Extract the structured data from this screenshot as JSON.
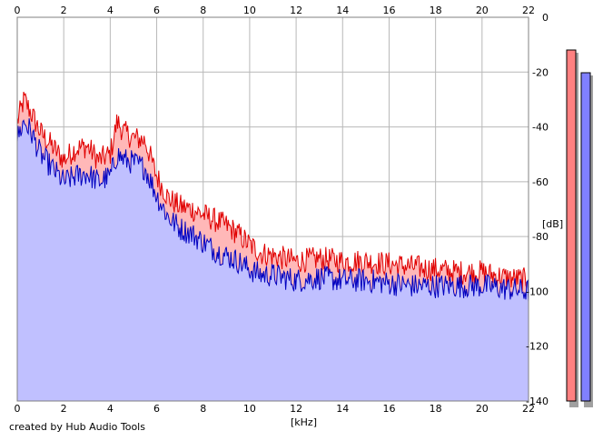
{
  "chart_data": {
    "type": "area",
    "xlabel": "[kHz]",
    "ylabel": "[dB]",
    "xlim": [
      0,
      22
    ],
    "ylim": [
      -140,
      0
    ],
    "x_ticks": [
      "0",
      "2",
      "4",
      "6",
      "8",
      "10",
      "12",
      "14",
      "16",
      "18",
      "20",
      "22"
    ],
    "y_ticks": [
      "0",
      "-20",
      "-40",
      "-60",
      "-80",
      "-100",
      "-120",
      "-140"
    ],
    "grid": true,
    "x_axis_position": "top and bottom",
    "y_axis_position": "right",
    "series": [
      {
        "color": "#e00000",
        "fill": "#ffb8b8",
        "x": [
          0,
          0.3,
          0.6,
          1,
          1.5,
          2,
          2.5,
          3,
          3.5,
          4,
          4.3,
          4.6,
          5,
          5.5,
          6,
          6.5,
          7,
          7.5,
          8,
          8.5,
          9,
          9.5,
          10,
          10.5,
          11,
          11.5,
          12,
          13,
          14,
          15,
          16,
          17,
          18,
          19,
          20,
          21,
          22
        ],
        "values": [
          -38,
          -30,
          -35,
          -42,
          -47,
          -52,
          -48,
          -47,
          -52,
          -50,
          -38,
          -42,
          -44,
          -45,
          -58,
          -66,
          -69,
          -70,
          -72,
          -74,
          -76,
          -79,
          -83,
          -86,
          -87,
          -88,
          -89,
          -88,
          -89,
          -89,
          -90,
          -91,
          -92,
          -93,
          -93,
          -95,
          -96
        ]
      },
      {
        "color": "#0000c0",
        "fill": "#c0c0ff",
        "x": [
          0,
          0.3,
          0.6,
          1,
          1.5,
          2,
          2.5,
          3,
          3.5,
          4,
          4.3,
          4.6,
          5,
          5.5,
          6,
          6.5,
          7,
          7.5,
          8,
          8.5,
          9,
          9.5,
          10,
          10.5,
          11,
          11.5,
          12,
          13,
          14,
          15,
          16,
          17,
          18,
          19,
          20,
          21,
          22
        ],
        "values": [
          -44,
          -38,
          -42,
          -50,
          -55,
          -60,
          -58,
          -57,
          -60,
          -58,
          -50,
          -52,
          -53,
          -55,
          -65,
          -73,
          -77,
          -79,
          -82,
          -85,
          -87,
          -89,
          -92,
          -94,
          -94,
          -95,
          -96,
          -95,
          -96,
          -96,
          -97,
          -98,
          -98,
          -98,
          -98,
          -99,
          -100
        ]
      }
    ],
    "level_meters": [
      {
        "channel": "left",
        "color": "#ff8080",
        "value_db": -12
      },
      {
        "channel": "right",
        "color": "#8080ff",
        "value_db": -20
      }
    ]
  },
  "footer": {
    "credit": "created by Hub Audio Tools"
  }
}
